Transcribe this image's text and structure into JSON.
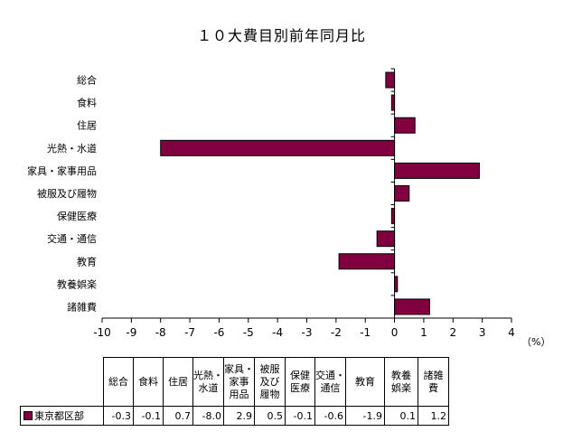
{
  "chart_data": {
    "type": "bar",
    "orientation": "horizontal",
    "title": "１０大費目別前年同月比",
    "unit": "（%）",
    "categories": [
      "総合",
      "食料",
      "住居",
      "光熱・水道",
      "家具・家事用品",
      "被服及び履物",
      "保健医療",
      "交通・通信",
      "教育",
      "教養娯楽",
      "諸雑費"
    ],
    "series": [
      {
        "name": "東京都区部",
        "values": [
          -0.3,
          -0.1,
          0.7,
          -8.0,
          2.9,
          0.5,
          -0.1,
          -0.6,
          -1.9,
          0.1,
          1.2
        ]
      }
    ],
    "xlim": [
      -10,
      4
    ],
    "xticks": [
      -10,
      -9,
      -8,
      -7,
      -6,
      -5,
      -4,
      -3,
      -2,
      -1,
      0,
      1,
      2,
      3,
      4
    ],
    "grid": false,
    "bar_color": "#800040"
  },
  "table": {
    "headers": [
      "総合",
      "食料",
      "住居",
      "光熱・\n水道",
      "家具・\n家事\n用品",
      "被服\n及び\n履物",
      "保健\n医療",
      "交通・\n通信",
      "教育",
      "教養\n娯楽",
      "諸雑\n費"
    ],
    "series_label": "東京都区部",
    "values": [
      "-0.3",
      "-0.1",
      "0.7",
      "-8.0",
      "2.9",
      "0.5",
      "-0.1",
      "-0.6",
      "-1.9",
      "0.1",
      "1.2"
    ]
  }
}
